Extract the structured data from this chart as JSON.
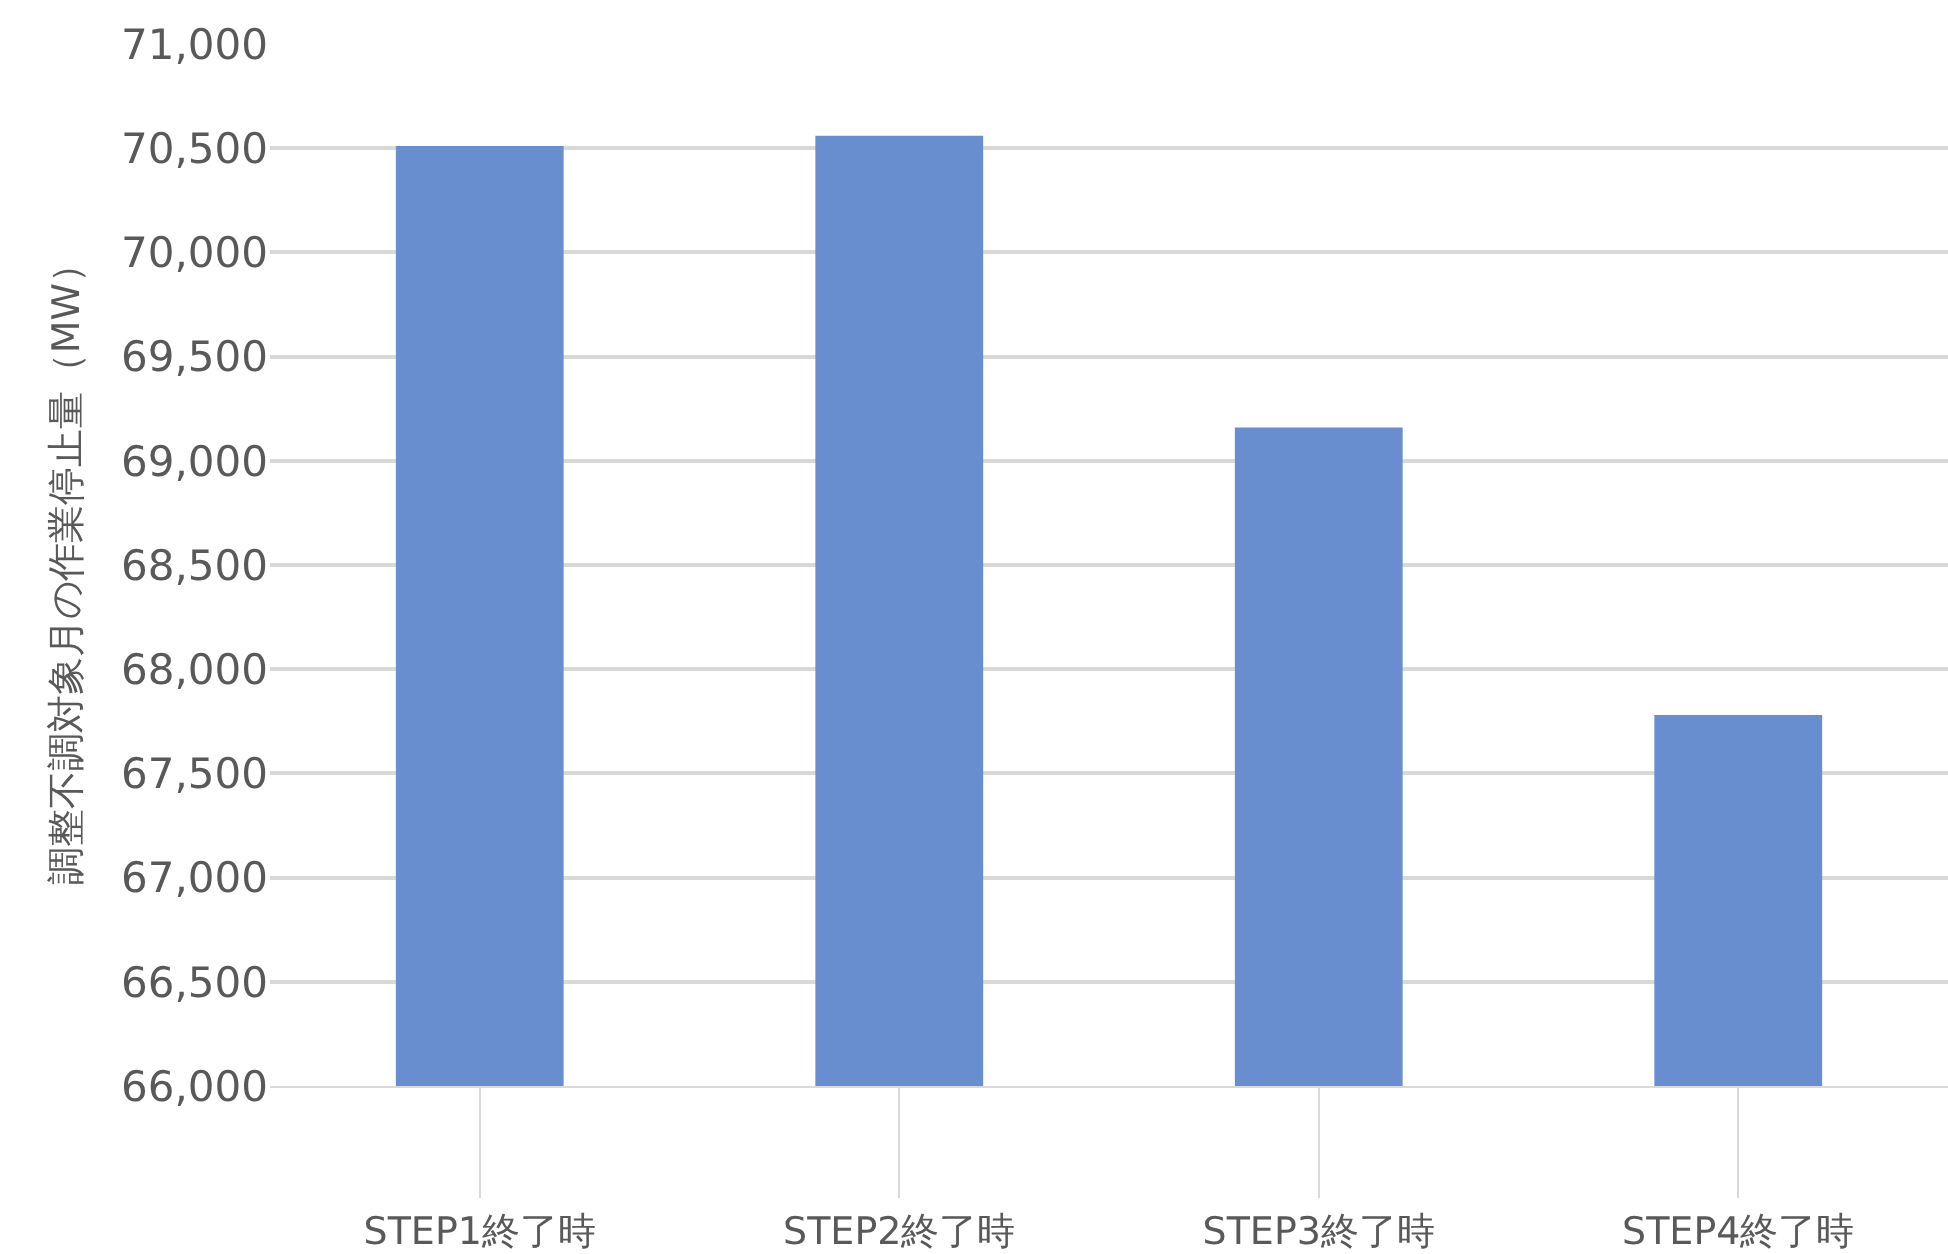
{
  "chart_data": {
    "type": "bar",
    "ylabel": "調整不調対象月の作業停止量（MW）",
    "categories": [
      "STEP1終了時",
      "STEP2終了時",
      "STEP3終了時",
      "STEP4終了時"
    ],
    "values": [
      70510,
      70560,
      69160,
      67780
    ],
    "color": "#698ed0",
    "ylim": [
      66000,
      71000
    ],
    "yticks": [
      {
        "value": 66000,
        "label": "66,000"
      },
      {
        "value": 66500,
        "label": "66,500"
      },
      {
        "value": 67000,
        "label": "67,000"
      },
      {
        "value": 67500,
        "label": "67,500"
      },
      {
        "value": 68000,
        "label": "68,000"
      },
      {
        "value": 68500,
        "label": "68,500"
      },
      {
        "value": 69000,
        "label": "69,000"
      },
      {
        "value": 69500,
        "label": "69,500"
      },
      {
        "value": 70000,
        "label": "70,000"
      },
      {
        "value": 70500,
        "label": "70,500"
      },
      {
        "value": 71000,
        "label": "71,000"
      }
    ],
    "grid": "y",
    "legend": false
  }
}
